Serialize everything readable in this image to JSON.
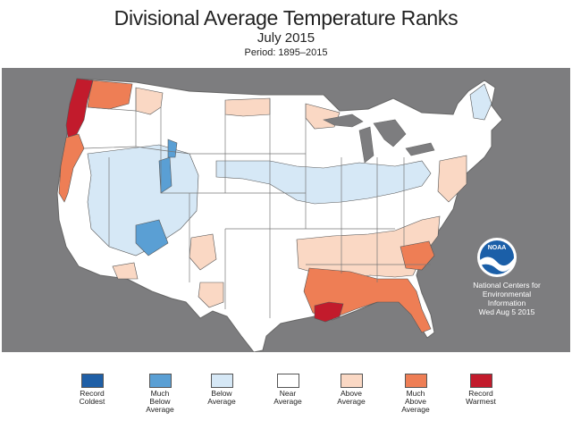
{
  "header": {
    "title": "Divisional Average Temperature Ranks",
    "subtitle": "July 2015",
    "period": "Period: 1895–2015"
  },
  "credit": {
    "line1": "National Centers for",
    "line2": "Environmental",
    "line3": "Information",
    "line4": "Wed Aug  5 2015"
  },
  "logo": {
    "text": "NOAA",
    "icon": "noaa-logo"
  },
  "legend": [
    {
      "label": [
        "Record",
        "Coldest"
      ],
      "color": "#1f5fa6"
    },
    {
      "label": [
        "Much",
        "Below",
        "Average"
      ],
      "color": "#5a9fd4"
    },
    {
      "label": [
        "Below",
        "Average"
      ],
      "color": "#d6e8f6"
    },
    {
      "label": [
        "Near",
        "Average"
      ],
      "color": "#ffffff"
    },
    {
      "label": [
        "Above",
        "Average"
      ],
      "color": "#fad8c4"
    },
    {
      "label": [
        "Much",
        "Above",
        "Average"
      ],
      "color": "#ee7e55"
    },
    {
      "label": [
        "Record",
        "Warmest"
      ],
      "color": "#c21b2c"
    }
  ],
  "colors": {
    "background": "#7d7d7f",
    "land": "#ffffff",
    "below": "#d6e8f6",
    "much_below": "#5a9fd4",
    "above": "#fad8c4",
    "much_above": "#ee7e55",
    "record_warm": "#c21b2c",
    "state_border": "#555555"
  }
}
